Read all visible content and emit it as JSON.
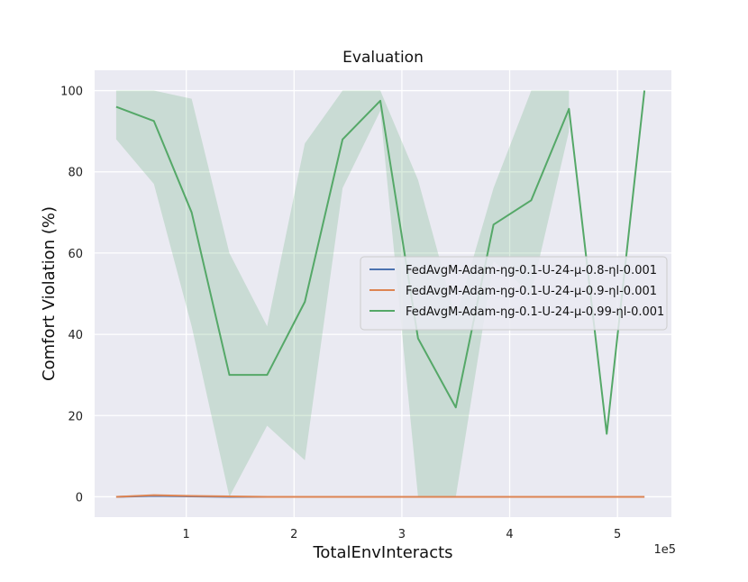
{
  "chart_data": {
    "type": "line",
    "title": "Evaluation",
    "xlabel": "TotalEnvInteracts",
    "ylabel": "Comfort Violation (%)",
    "x_multiplier_label": "1e5",
    "xlim": [
      0.15,
      5.5
    ],
    "ylim": [
      -5,
      105
    ],
    "xticks": [
      1,
      2,
      3,
      4,
      5
    ],
    "yticks": [
      0,
      20,
      40,
      60,
      80,
      100
    ],
    "xtick_labels": [
      "1",
      "2",
      "3",
      "4",
      "5"
    ],
    "ytick_labels": [
      "0",
      "20",
      "40",
      "60",
      "80",
      "100"
    ],
    "grid": true,
    "legend_position": "center-right",
    "x": [
      0.35,
      0.7,
      1.05,
      1.4,
      1.75,
      2.1,
      2.45,
      2.8,
      3.15,
      3.5,
      3.85,
      4.2,
      4.55,
      4.9,
      5.25
    ],
    "series": [
      {
        "name": "FedAvgM-Adam-ηg-0.1-U-24-μ-0.8-ηl-0.001",
        "color": "#4c72b0",
        "values": [
          0,
          0.2,
          0.1,
          0,
          0,
          0,
          0,
          0,
          0,
          0,
          0,
          0,
          0,
          0,
          0
        ],
        "band_low": null,
        "band_high": null
      },
      {
        "name": "FedAvgM-Adam-ηg-0.1-U-24-μ-0.9-ηl-0.001",
        "color": "#dd8452",
        "values": [
          0,
          0.4,
          0.2,
          0.1,
          0,
          0,
          0,
          0,
          0,
          0,
          0,
          0,
          0,
          0,
          0
        ],
        "band_low": null,
        "band_high": null
      },
      {
        "name": "FedAvgM-Adam-ηg-0.1-U-24-μ-0.99-ηl-0.001",
        "color": "#55a868",
        "values": [
          96,
          92.5,
          70,
          30,
          30,
          48,
          88,
          97.5,
          39,
          22,
          67,
          73,
          95.5,
          15.5,
          100
        ],
        "band_low": [
          88,
          77,
          42,
          0,
          17.5,
          9,
          76,
          95,
          0,
          0,
          58,
          50,
          90,
          null,
          null
        ],
        "band_high": [
          100,
          100,
          98,
          60,
          42,
          87,
          100,
          100,
          78,
          44,
          76,
          100,
          100,
          null,
          null
        ]
      }
    ]
  }
}
